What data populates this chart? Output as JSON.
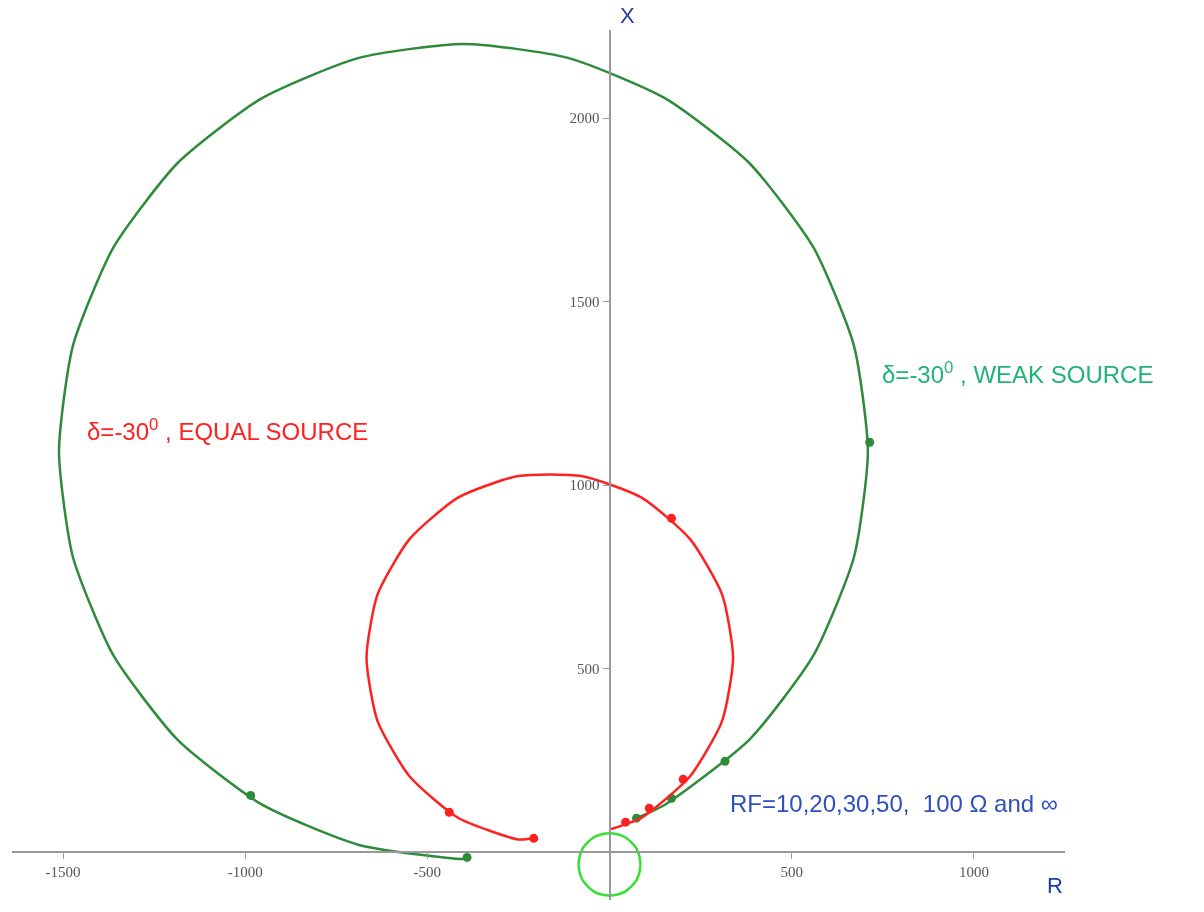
{
  "chart_data": {
    "type": "line",
    "xlabel": "R",
    "ylabel": "X",
    "xlim": [
      -1640,
      1250
    ],
    "ylim": [
      -130,
      2240
    ],
    "xticks": [
      -1500,
      -1000,
      -500,
      500,
      1000
    ],
    "yticks": [
      500,
      1000,
      1500,
      2000
    ],
    "series": [
      {
        "color": "#2e8b3a",
        "marker": "none",
        "x": [
          74,
          154,
          384,
          560,
          671,
          709,
          671,
          560,
          384,
          154,
          -114,
          -401,
          -688,
          -956,
          -1186,
          -1362,
          -1473,
          -1511,
          -1473,
          -1362,
          -1186,
          -956,
          -688,
          -401,
          -391
        ],
        "values": [
          93,
          131,
          307,
          537,
          805,
          1092,
          1379,
          1647,
          1877,
          2053,
          2164,
          2202,
          2164,
          2053,
          1877,
          1647,
          1379,
          1092,
          805,
          537,
          307,
          131,
          20,
          -18,
          -14
        ]
      },
      {
        "type": "scatter",
        "color": "#2e8b3a",
        "marker": "circle",
        "x": [
          74,
          170,
          317,
          714,
          -985,
          -391
        ],
        "values": [
          93,
          147,
          248,
          1117,
          155,
          -14
        ]
      },
      {
        "color": "#ff2020",
        "marker": "none",
        "x": [
          3,
          88,
          221,
          309,
          339,
          309,
          221,
          88,
          -77,
          -251,
          -416,
          -549,
          -637,
          -667,
          -637,
          -549,
          -416,
          -251,
          -208
        ],
        "values": [
          63,
          94,
          207,
          358,
          530,
          702,
          853,
          966,
          1025,
          1025,
          966,
          853,
          702,
          530,
          358,
          207,
          94,
          35,
          38
        ]
      },
      {
        "type": "scatter",
        "color": "#ff2020",
        "marker": "circle",
        "x": [
          44,
          109,
          202,
          170,
          -440,
          -208
        ],
        "values": [
          82,
          120,
          199,
          910,
          109,
          38
        ]
      },
      {
        "color": "#33e033",
        "marker": "none",
        "x": [
          85,
          82,
          74,
          60,
          43,
          22,
          0,
          -22,
          -43,
          -60,
          -74,
          -82,
          -85,
          -82,
          -74,
          -60,
          -43,
          -22,
          0,
          22,
          43,
          60,
          74,
          82,
          85
        ],
        "values": [
          -33,
          -11,
          10,
          27,
          41,
          49,
          52,
          49,
          41,
          27,
          10,
          -11,
          -33,
          -55,
          -76,
          -93,
          -107,
          -115,
          -118,
          -115,
          -107,
          -93,
          -76,
          -55,
          -30
        ]
      }
    ],
    "annotations": [
      "δ=-30$^{0}$ , EQUAL SOURCE",
      "δ=-30$^{0}$ , WEAK SOURCE",
      "RF=10,20,30,50,  100 Ω and ∞"
    ]
  }
}
